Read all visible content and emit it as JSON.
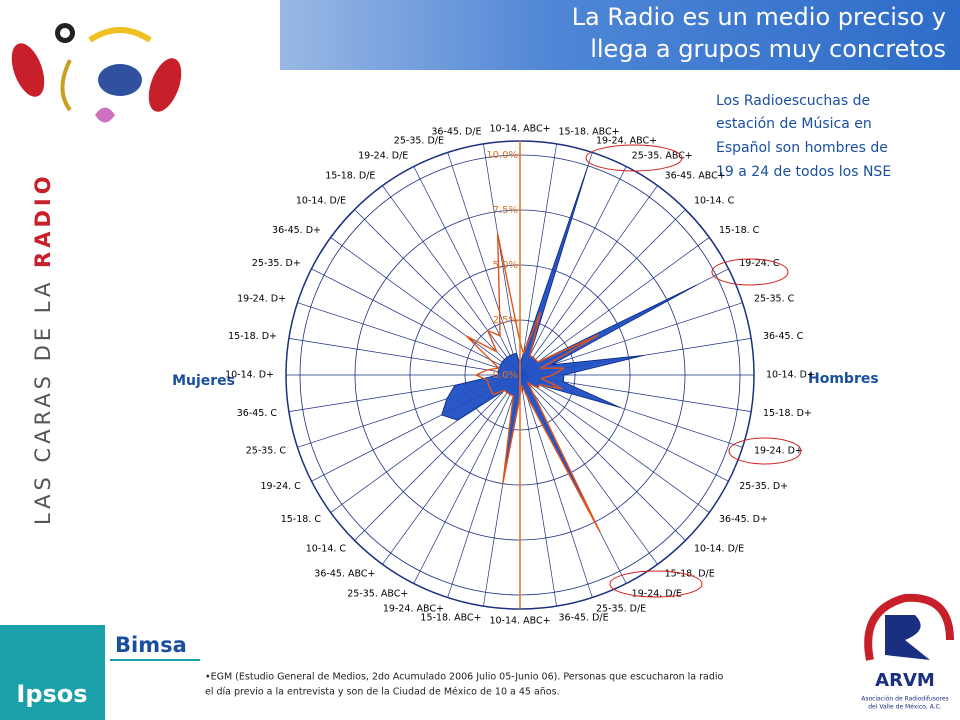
{
  "chart_data": {
    "type": "radar",
    "title": [
      "La Radio es un medio preciso y",
      "llega a grupos muy concretos"
    ],
    "annotation": [
      "Los Radioescuchas de",
      "estación de Música en",
      "Español son hombres de",
      "19 a 24 de todos los NSE"
    ],
    "left_label": "Mujeres",
    "right_label": "Hombres",
    "categories": [
      "10-14. ABC+",
      "15-18. ABC+",
      "19-24. ABC+",
      "25-35. ABC+",
      "36-45. ABC+",
      "10-14. C",
      "15-18. C",
      "19-24. C",
      "25-35. C",
      "36-45. C",
      "10-14. D+",
      "15-18. D+",
      "19-24. D+",
      "25-35. D+",
      "36-45. D+",
      "10-14. D/E",
      "15-18. D/E",
      "19-24. D/E",
      "25-35. D/E",
      "36-45. D/E",
      "10-14. ABC+",
      "15-18. ABC+",
      "19-24. ABC+",
      "25-35. ABC+",
      "36-45. ABC+",
      "10-14. C",
      "15-18. C",
      "19-24. C",
      "25-35. C",
      "36-45. C",
      "10-14. D+",
      "15-18. D+",
      "19-24. D+",
      "25-35. D+",
      "36-45. D+",
      "10-14. D/E",
      "15-18. D/E",
      "19-24. D/E",
      "25-35. D/E",
      "36-45. D/E"
    ],
    "series": [
      {
        "color": "#1f4fc4",
        "values": [
          0.5,
          1,
          10,
          1,
          1,
          1,
          1,
          9,
          1.5,
          5.7,
          2,
          2,
          4.8,
          1,
          1,
          0.5,
          1,
          8,
          1,
          0.5,
          1,
          5,
          1,
          1,
          1,
          1,
          3.5,
          4,
          3.5,
          3,
          1,
          1,
          1,
          1,
          1,
          1,
          1,
          1,
          1,
          1
        ]
      },
      {
        "color": "#e0541c",
        "values": [
          1.5,
          1,
          3,
          1,
          1,
          1,
          1,
          4,
          1,
          2,
          1.5,
          1,
          2,
          1,
          1,
          0.5,
          1,
          8,
          1,
          0.5,
          1,
          5,
          1,
          1,
          1,
          1,
          1.5,
          1.5,
          1.5,
          1.5,
          2,
          1.5,
          1,
          1.5,
          3,
          1.5,
          2.5,
          2,
          3,
          6.5
        ]
      }
    ],
    "rlim": [
      0,
      10
    ],
    "rticks": [
      {
        "value": 0,
        "label": "0.0%"
      },
      {
        "value": 2.5,
        "label": "2.5%"
      },
      {
        "value": 5,
        "label": "5.0%"
      },
      {
        "value": 7.5,
        "label": "7.5%"
      },
      {
        "value": 10,
        "label": "10.0%"
      }
    ]
  },
  "side_text": [
    "LAS CARAS DE LA ",
    "RADIO"
  ],
  "logos": {
    "bimsa": "Bimsa",
    "ipsos": "Ipsos",
    "arvm": "ARVM",
    "arvm_sub": [
      "Asociación de Radiodifusores",
      "del Valle de México, A.C."
    ]
  },
  "footnote": [
    "•EGM (Estudio General de Medios, 2do Acumulado 2006 Julio 05-Junio 06). Personas que escucharon la radio",
    "el día previo a la entrevista  y son de la Ciudad de México de 10 a 45 años."
  ]
}
